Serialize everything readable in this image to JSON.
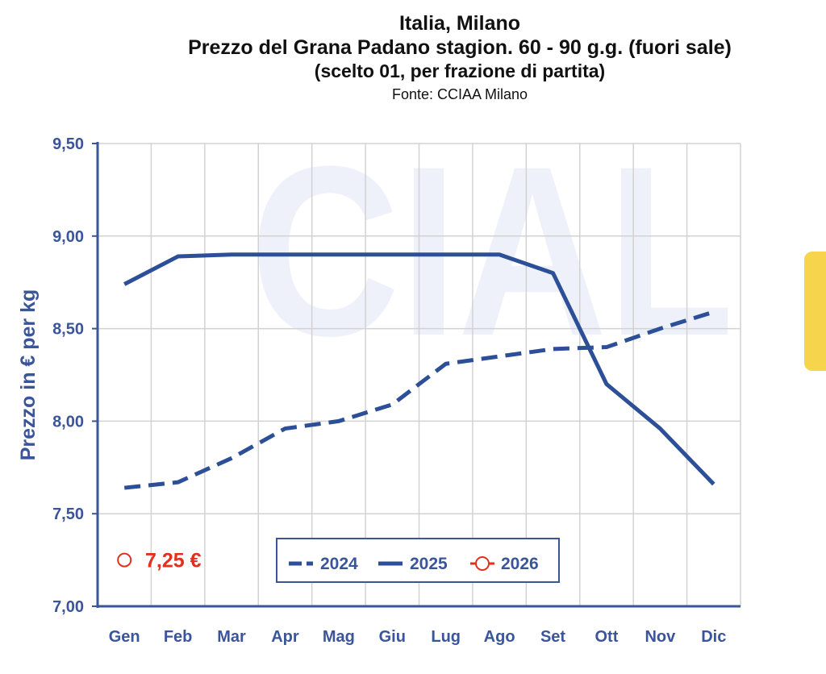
{
  "title": {
    "line1": "Italia, Milano",
    "line2": "Prezzo del Grana Padano stagion. 60 - 90 g.g. (fuori sale)",
    "line3": "(scelto 01, per frazione di partita)",
    "source": "Fonte: CCIAA Milano"
  },
  "watermark": "CIAL",
  "colors": {
    "axis": "#3a559a",
    "series": "#2c4f97",
    "grid": "#d2d2d2",
    "current_value": "#e0301e",
    "side_tab": "#f6d44b"
  },
  "current_value": {
    "label": "7,25 €",
    "value": 7.25,
    "marker": "hollow-circle"
  },
  "chart_data": {
    "type": "line",
    "title": "Prezzo del Grana Padano stagion. 60 - 90 g.g. (fuori sale)",
    "ylabel": "Prezzo in € per kg",
    "xlabel": "",
    "categories": [
      "Gen",
      "Feb",
      "Mar",
      "Apr",
      "Mag",
      "Giu",
      "Lug",
      "Ago",
      "Set",
      "Ott",
      "Nov",
      "Dic"
    ],
    "yticks": [
      "7,00",
      "7,50",
      "8,00",
      "8,50",
      "9,00",
      "9,50"
    ],
    "ylim": [
      7.0,
      9.5
    ],
    "grid": true,
    "legend_position": "bottom-center",
    "series": [
      {
        "name": "2024",
        "style": "dashed",
        "values": [
          7.64,
          7.67,
          7.8,
          7.96,
          8.0,
          8.09,
          8.31,
          8.35,
          8.39,
          8.4,
          8.5,
          8.59
        ]
      },
      {
        "name": "2025",
        "style": "solid",
        "values": [
          8.74,
          8.89,
          8.9,
          8.9,
          8.9,
          8.9,
          8.9,
          8.9,
          8.8,
          8.2,
          7.96,
          7.66
        ]
      },
      {
        "name": "2026",
        "style": "hollow-circle",
        "values": [
          7.25,
          null,
          null,
          null,
          null,
          null,
          null,
          null,
          null,
          null,
          null,
          null
        ]
      }
    ]
  }
}
